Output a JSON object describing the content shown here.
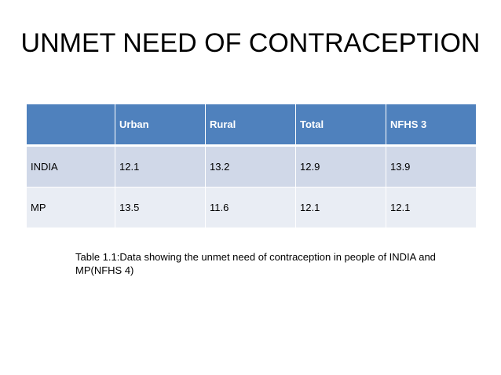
{
  "slide": {
    "title": "UNMET NEED OF CONTRACEPTION",
    "caption": "Table 1.1:Data showing the unmet need of contraception in people of INDIA and MP(NFHS 4)"
  },
  "table": {
    "headers": [
      "",
      "Urban",
      "Rural",
      "Total",
      "NFHS 3"
    ],
    "rows": [
      [
        "INDIA",
        "12.1",
        "13.2",
        "12.9",
        "13.9"
      ],
      [
        "MP",
        "13.5",
        "11.6",
        "12.1",
        "12.1"
      ]
    ]
  },
  "colors": {
    "header_bg": "#4f81bd",
    "row1_bg": "#d0d8e8",
    "row2_bg": "#e9edf4"
  }
}
